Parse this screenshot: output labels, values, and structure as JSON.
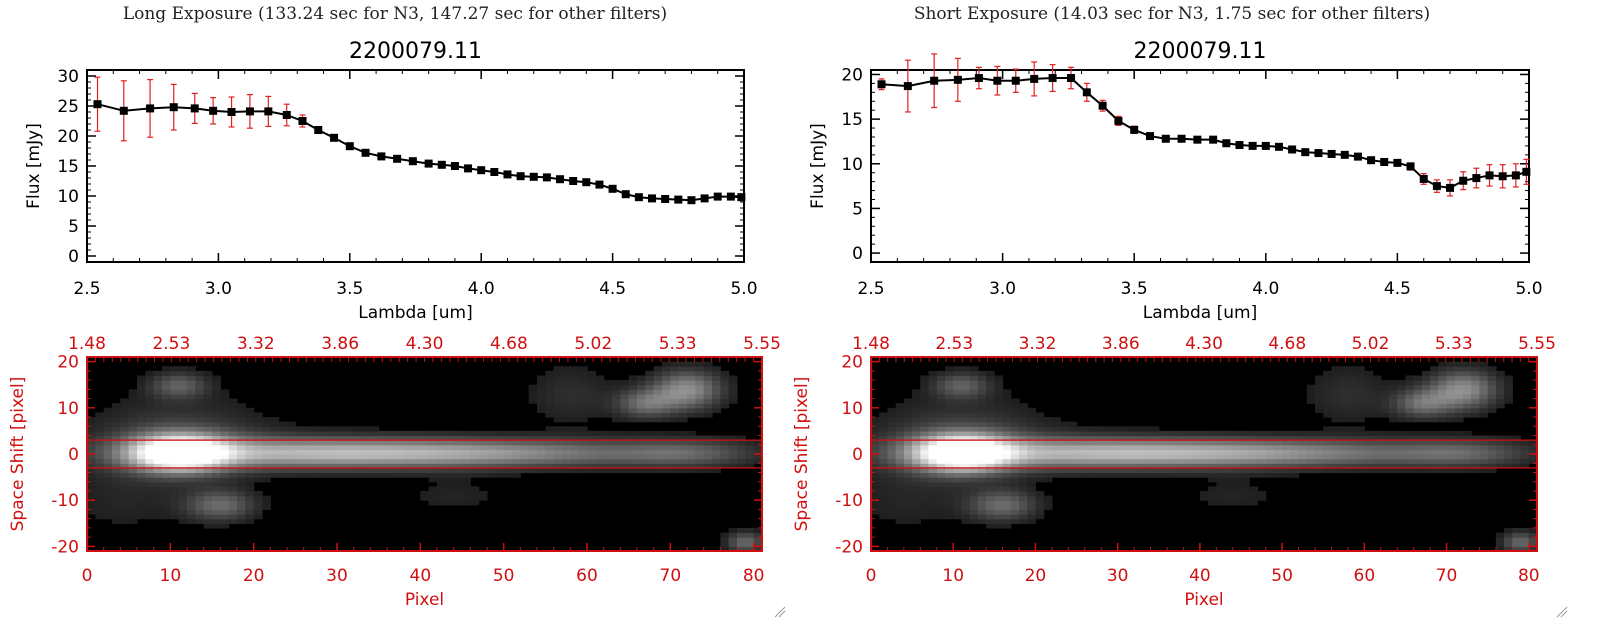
{
  "panels": [
    {
      "title": "Long Exposure (133.24 sec for N3, 147.27 sec for other filters)",
      "spectrum_title": "2200079.11"
    },
    {
      "title": "Short Exposure (14.03 sec for N3, 1.75 sec for other filters)",
      "spectrum_title": "2200079.11"
    }
  ],
  "colors": {
    "axis_red": "#d01010",
    "errorbar": "#e02020",
    "line": "#000000"
  },
  "chart_data": [
    {
      "type": "line",
      "title": "2200079.11",
      "xlabel": "Lambda [um]",
      "ylabel": "Flux [mJy]",
      "xlim": [
        2.5,
        5.0
      ],
      "ylim": [
        -1,
        31
      ],
      "xticks": [
        "2.5",
        "3.0",
        "3.5",
        "4.0",
        "4.5",
        "5.0"
      ],
      "yticks": [
        "0",
        "5",
        "10",
        "15",
        "20",
        "25",
        "30"
      ],
      "x": [
        2.54,
        2.64,
        2.74,
        2.83,
        2.91,
        2.98,
        3.05,
        3.12,
        3.19,
        3.26,
        3.32,
        3.38,
        3.44,
        3.5,
        3.56,
        3.62,
        3.68,
        3.74,
        3.8,
        3.85,
        3.9,
        3.95,
        4.0,
        4.05,
        4.1,
        4.15,
        4.2,
        4.25,
        4.3,
        4.35,
        4.4,
        4.45,
        4.5,
        4.55,
        4.6,
        4.65,
        4.7,
        4.75,
        4.8,
        4.85,
        4.9,
        4.95,
        4.99
      ],
      "values": [
        25.3,
        24.2,
        24.6,
        24.8,
        24.6,
        24.2,
        24.0,
        24.1,
        24.1,
        23.5,
        22.5,
        21.0,
        19.7,
        18.3,
        17.2,
        16.6,
        16.2,
        15.8,
        15.4,
        15.2,
        15.0,
        14.6,
        14.3,
        14.0,
        13.6,
        13.3,
        13.2,
        13.1,
        12.8,
        12.5,
        12.3,
        11.9,
        11.2,
        10.3,
        9.8,
        9.6,
        9.5,
        9.4,
        9.3,
        9.6,
        9.9,
        9.9,
        9.8
      ],
      "errors": [
        4.5,
        5.0,
        4.8,
        3.8,
        2.5,
        2.2,
        2.5,
        2.8,
        2.5,
        1.8,
        1.0,
        0.5,
        0.5,
        0.5,
        0.4,
        0.4,
        0.3,
        0.3,
        0.3,
        0.3,
        0.3,
        0.3,
        0.3,
        0.3,
        0.3,
        0.3,
        0.3,
        0.3,
        0.3,
        0.3,
        0.3,
        0.3,
        0.3,
        0.3,
        0.3,
        0.3,
        0.3,
        0.3,
        0.3,
        0.4,
        0.4,
        0.4,
        0.4
      ]
    },
    {
      "type": "line",
      "title": "2200079.11",
      "xlabel": "Lambda [um]",
      "ylabel": "Flux [mJy]",
      "xlim": [
        2.5,
        5.0
      ],
      "ylim": [
        -1,
        20.5
      ],
      "xticks": [
        "2.5",
        "3.0",
        "3.5",
        "4.0",
        "4.5",
        "5.0"
      ],
      "yticks": [
        "0",
        "5",
        "10",
        "15",
        "20"
      ],
      "x": [
        2.54,
        2.64,
        2.74,
        2.83,
        2.91,
        2.98,
        3.05,
        3.12,
        3.19,
        3.26,
        3.32,
        3.38,
        3.44,
        3.5,
        3.56,
        3.62,
        3.68,
        3.74,
        3.8,
        3.85,
        3.9,
        3.95,
        4.0,
        4.05,
        4.1,
        4.15,
        4.2,
        4.25,
        4.3,
        4.35,
        4.4,
        4.45,
        4.5,
        4.55,
        4.6,
        4.65,
        4.7,
        4.75,
        4.8,
        4.85,
        4.9,
        4.95,
        4.99
      ],
      "values": [
        18.9,
        18.7,
        19.3,
        19.4,
        19.6,
        19.3,
        19.3,
        19.5,
        19.6,
        19.6,
        18.0,
        16.5,
        14.8,
        13.8,
        13.1,
        12.8,
        12.8,
        12.7,
        12.7,
        12.3,
        12.1,
        12.0,
        12.0,
        11.9,
        11.6,
        11.3,
        11.2,
        11.1,
        11.0,
        10.8,
        10.4,
        10.2,
        10.1,
        9.7,
        8.3,
        7.5,
        7.3,
        8.1,
        8.4,
        8.7,
        8.6,
        8.7,
        9.1
      ],
      "errors": [
        0.6,
        2.9,
        3.0,
        2.4,
        1.2,
        1.6,
        1.3,
        1.9,
        1.5,
        1.2,
        1.0,
        0.6,
        0.5,
        0.4,
        0.3,
        0.3,
        0.3,
        0.3,
        0.3,
        0.3,
        0.3,
        0.3,
        0.3,
        0.3,
        0.3,
        0.3,
        0.3,
        0.3,
        0.3,
        0.3,
        0.3,
        0.3,
        0.3,
        0.4,
        0.6,
        0.7,
        0.9,
        1.0,
        1.1,
        1.2,
        1.3,
        1.3,
        1.4
      ]
    },
    {
      "type": "heatmap",
      "xlabel": "Pixel",
      "ylabel": "Space Shift [pixel]",
      "xlim": [
        0,
        81
      ],
      "ylim": [
        -21,
        21
      ],
      "xticks": [
        "0",
        "10",
        "20",
        "30",
        "40",
        "50",
        "60",
        "70",
        "80"
      ],
      "yticks": [
        "-20",
        "-10",
        "0",
        "10",
        "20"
      ],
      "top_ticks": [
        "1.48",
        "2.53",
        "3.32",
        "3.86",
        "4.30",
        "4.68",
        "5.02",
        "5.33",
        "5.55"
      ],
      "aperture": [
        -3,
        3
      ]
    },
    {
      "type": "heatmap",
      "xlabel": "Pixel",
      "ylabel": "Space Shift [pixel]",
      "xlim": [
        0,
        81
      ],
      "ylim": [
        -21,
        21
      ],
      "xticks": [
        "0",
        "10",
        "20",
        "30",
        "40",
        "50",
        "60",
        "70",
        "80"
      ],
      "yticks": [
        "-20",
        "-10",
        "0",
        "10",
        "20"
      ],
      "top_ticks": [
        "1.48",
        "2.53",
        "3.32",
        "3.86",
        "4.30",
        "4.68",
        "5.02",
        "5.33",
        "5.55"
      ],
      "aperture": [
        -3,
        3
      ]
    }
  ]
}
